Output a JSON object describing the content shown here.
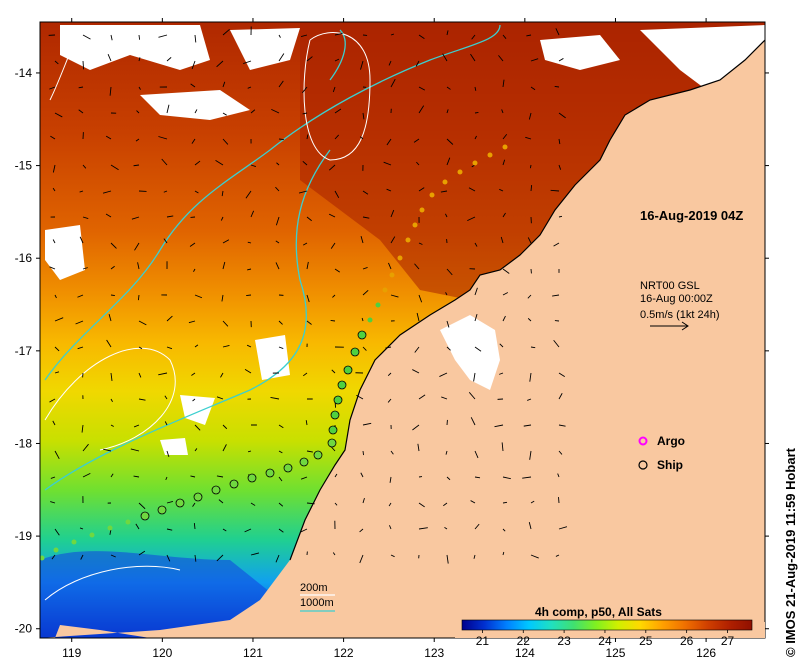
{
  "title": "16-Aug-2019 04Z",
  "currents": {
    "source": "NRT00 GSL",
    "date": "16-Aug 00:00Z",
    "scale": "0.5m/s (1kt 24h)"
  },
  "legend": {
    "argo": "Argo",
    "ship": "Ship",
    "argo_color": "#ff00ff",
    "ship_color": "#000000"
  },
  "isobaths": {
    "shallow": "200m",
    "deep": "1000m",
    "shallow_color": "#ffffff",
    "deep_color": "#3ccfcf"
  },
  "colorbar": {
    "title": "4h comp, p50, All Sats",
    "ticks": [
      "21",
      "22",
      "23",
      "24",
      "25",
      "26",
      "27"
    ],
    "min": 20.5,
    "max": 27.6,
    "colors": [
      "#00008c",
      "#0030d0",
      "#0080ff",
      "#00c8ff",
      "#20e0c0",
      "#40e070",
      "#80f020",
      "#d0f000",
      "#ffd800",
      "#ffa000",
      "#f07000",
      "#d04000",
      "#b02000",
      "#901000"
    ]
  },
  "axes": {
    "x_ticks": [
      "119",
      "120",
      "121",
      "122",
      "123",
      "124",
      "125",
      "126"
    ],
    "y_ticks": [
      "-14",
      "-15",
      "-16",
      "-17",
      "-18",
      "-19",
      "-20"
    ],
    "xlim": [
      118.65,
      126.65
    ],
    "ylim": [
      -20.1,
      -13.45
    ]
  },
  "copyright": "© IMOS 21-Aug-2019 11:59 Hobart",
  "colors": {
    "land": "#f9c8a0",
    "cloud": "#ffffff",
    "frame": "#000000"
  }
}
